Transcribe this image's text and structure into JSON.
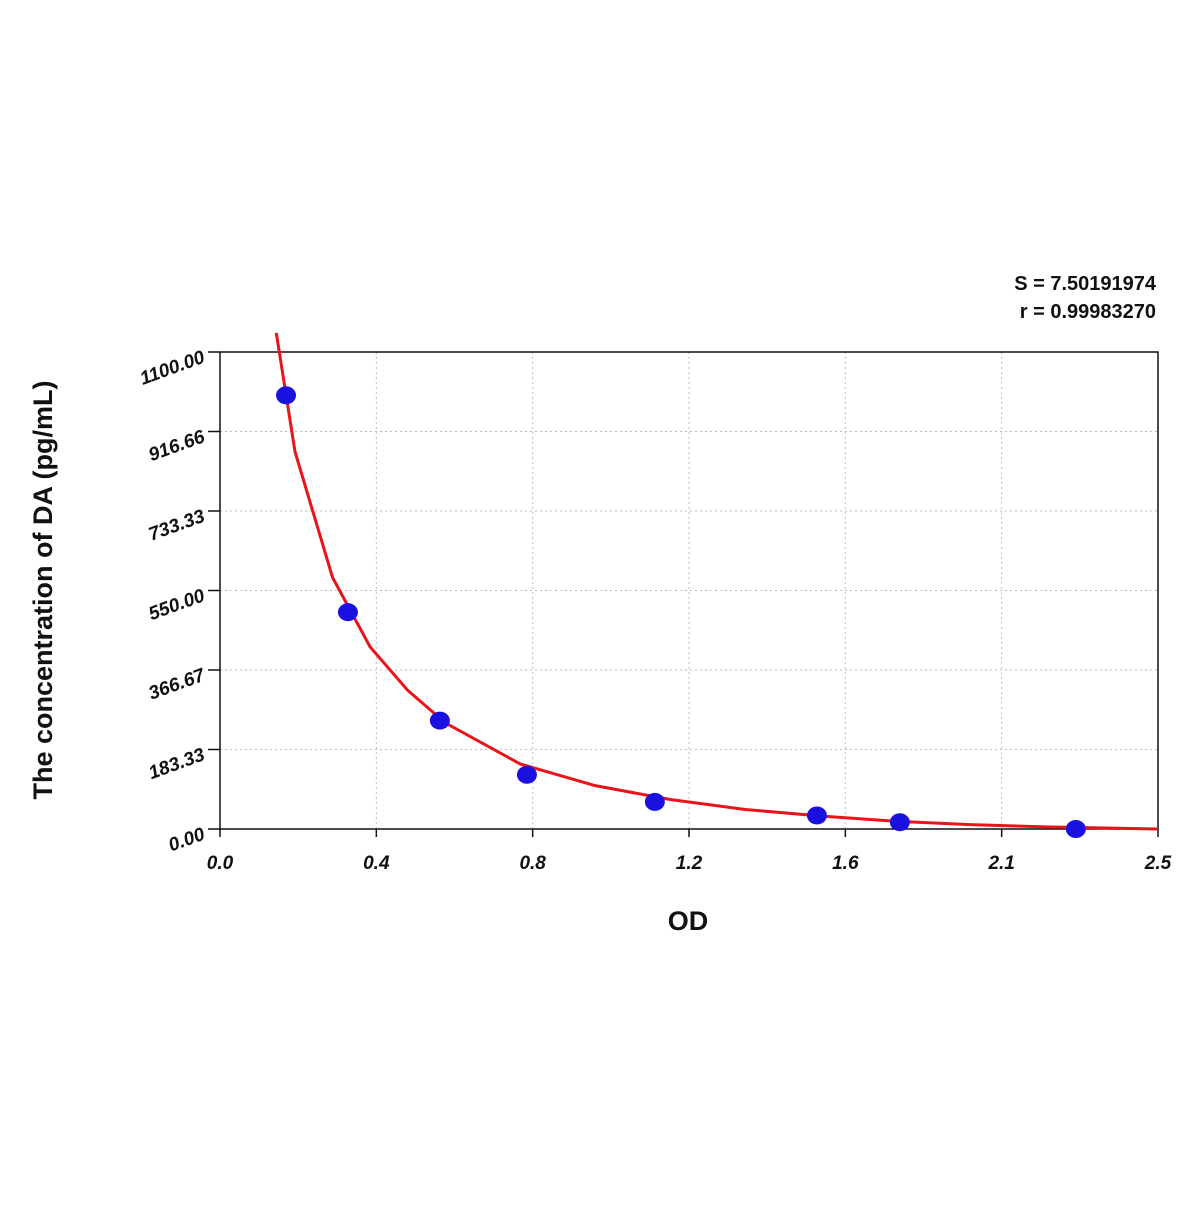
{
  "chart_data": {
    "type": "scatter",
    "annotations": [
      "S = 7.50191974",
      "r = 0.99983270"
    ],
    "x_label": "OD",
    "y_label": "The concentration of DA (pg/mL)",
    "xlim": [
      0,
      2.5
    ],
    "ylim": [
      0,
      1100
    ],
    "xticks": [
      {
        "value": 0,
        "label": "0.0"
      },
      {
        "value": 0.41667,
        "label": "0.4"
      },
      {
        "value": 0.83333,
        "label": "0.8"
      },
      {
        "value": 1.25,
        "label": "1.2"
      },
      {
        "value": 1.66667,
        "label": "1.6"
      },
      {
        "value": 2.08333,
        "label": "2.1"
      },
      {
        "value": 2.5,
        "label": "2.5"
      }
    ],
    "yticks": [
      {
        "value": 0,
        "label": "0.00"
      },
      183.33,
      366.67,
      {
        "value": 550,
        "label": "550.00"
      },
      733.33,
      916.66,
      {
        "value": 1100,
        "label": "1100.00"
      }
    ],
    "grid": true,
    "points": {
      "color": "#1a10e0",
      "x": [
        0.176,
        0.341,
        0.586,
        0.818,
        1.159,
        1.591,
        1.812,
        2.281
      ],
      "y": [
        1000,
        500,
        250,
        125,
        62.5,
        31.25,
        15.6,
        0
      ]
    },
    "curve": {
      "color": "#e8141a",
      "x": [
        0.15,
        0.2,
        0.3,
        0.4,
        0.5,
        0.6,
        0.8,
        1.0,
        1.2,
        1.4,
        1.6,
        1.8,
        2.0,
        2.2,
        2.5
      ],
      "y": [
        1144,
        870,
        580,
        420,
        320,
        245,
        150,
        100,
        68,
        45,
        30,
        18,
        10,
        5,
        0
      ]
    }
  }
}
